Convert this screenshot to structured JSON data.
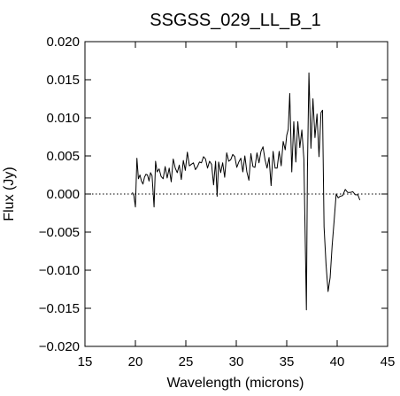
{
  "chart_data": {
    "type": "line",
    "title": "SSGSS_029_LL_B_1",
    "xlabel": "Wavelength (microns)",
    "ylabel": "Flux (Jy)",
    "xlim": [
      15,
      45
    ],
    "ylim": [
      -0.02,
      0.02
    ],
    "x_ticks": [
      15,
      20,
      25,
      30,
      35,
      40,
      45
    ],
    "y_ticks": [
      -0.02,
      -0.015,
      -0.01,
      -0.005,
      0.0,
      0.005,
      0.01,
      0.015,
      0.02
    ],
    "x_tick_labels": [
      "15",
      "20",
      "25",
      "30",
      "35",
      "40",
      "45"
    ],
    "y_tick_labels": [
      "−0.020",
      "−0.015",
      "−0.010",
      "−0.005",
      "0.000",
      "0.005",
      "0.010",
      "0.015",
      "0.020"
    ],
    "grid": false,
    "legend": "none",
    "reference_line": {
      "y": 0.0,
      "style": "dotted"
    },
    "series": [
      {
        "x": [
          19.7,
          19.85,
          20.0,
          20.15,
          20.3,
          20.45,
          20.6,
          20.75,
          20.9,
          21.05,
          21.2,
          21.35,
          21.5,
          21.65,
          21.85,
          22.0,
          22.15,
          22.35,
          22.55,
          22.75,
          22.95,
          23.15,
          23.35,
          23.55,
          23.75,
          23.95,
          24.15,
          24.35,
          24.55,
          24.75,
          24.95,
          25.15,
          25.35,
          25.55,
          25.75,
          25.95,
          26.15,
          26.35,
          26.55,
          26.75,
          26.95,
          27.15,
          27.35,
          27.55,
          27.75,
          27.95,
          28.1,
          28.25,
          28.45,
          28.65,
          28.85,
          29.05,
          29.25,
          29.45,
          29.65,
          29.85,
          30.05,
          30.25,
          30.45,
          30.65,
          30.85,
          31.05,
          31.25,
          31.45,
          31.65,
          31.85,
          32.05,
          32.25,
          32.45,
          32.65,
          32.85,
          33.05,
          33.25,
          33.45,
          33.65,
          33.85,
          34.05,
          34.25,
          34.45,
          34.65,
          34.85,
          35.0,
          35.15,
          35.3,
          35.5,
          35.7,
          35.9,
          36.1,
          36.3,
          36.5,
          36.7,
          36.95,
          37.05,
          37.2,
          37.4,
          37.6,
          37.8,
          38.0,
          38.2,
          38.4,
          38.55,
          38.7,
          38.9,
          39.1,
          39.3,
          39.5,
          39.7,
          39.9,
          40.1,
          40.3,
          40.55,
          40.8,
          41.05,
          41.3,
          41.55,
          41.8,
          42.05,
          42.25
        ],
        "y": [
          0.0002,
          -0.0002,
          -0.0017,
          0.0047,
          0.002,
          0.0025,
          0.0017,
          0.0013,
          0.0022,
          0.0026,
          0.0025,
          0.0017,
          0.0028,
          0.0024,
          -0.0017,
          0.0043,
          0.0029,
          0.0033,
          0.0023,
          0.002,
          0.0036,
          0.0021,
          0.0034,
          0.0016,
          0.0046,
          0.0034,
          0.0028,
          0.0038,
          0.0019,
          0.0044,
          0.0031,
          0.0055,
          0.0037,
          0.0039,
          0.0041,
          0.0032,
          0.0036,
          0.0042,
          0.0041,
          0.0049,
          0.0046,
          0.0034,
          0.0043,
          0.0039,
          0.0012,
          0.0043,
          -0.0003,
          0.0042,
          0.0028,
          0.0041,
          0.0022,
          0.0054,
          0.0043,
          0.0045,
          0.0052,
          0.0049,
          0.0035,
          0.0042,
          0.0047,
          0.0029,
          0.005,
          0.0029,
          0.0018,
          0.0053,
          0.0036,
          0.0035,
          0.0054,
          0.0041,
          0.0056,
          0.0062,
          0.0045,
          0.0034,
          0.0048,
          0.0011,
          0.0056,
          0.0034,
          0.0034,
          0.0056,
          0.0037,
          0.0069,
          0.0058,
          0.0077,
          0.0085,
          0.0132,
          0.0029,
          0.0095,
          0.0042,
          0.0095,
          0.0061,
          0.0084,
          0.0046,
          -0.0152,
          0.0029,
          0.0159,
          0.006,
          0.0125,
          0.0074,
          0.0105,
          0.0049,
          0.0107,
          0.011,
          -0.0043,
          -0.0093,
          -0.0128,
          -0.011,
          -0.0068,
          -0.0035,
          0.0,
          -0.0005,
          -0.0003,
          -0.0002,
          0.0006,
          0.0002,
          0.0002,
          0.0003,
          -0.0001,
          -0.0001,
          -0.0008
        ]
      }
    ]
  }
}
